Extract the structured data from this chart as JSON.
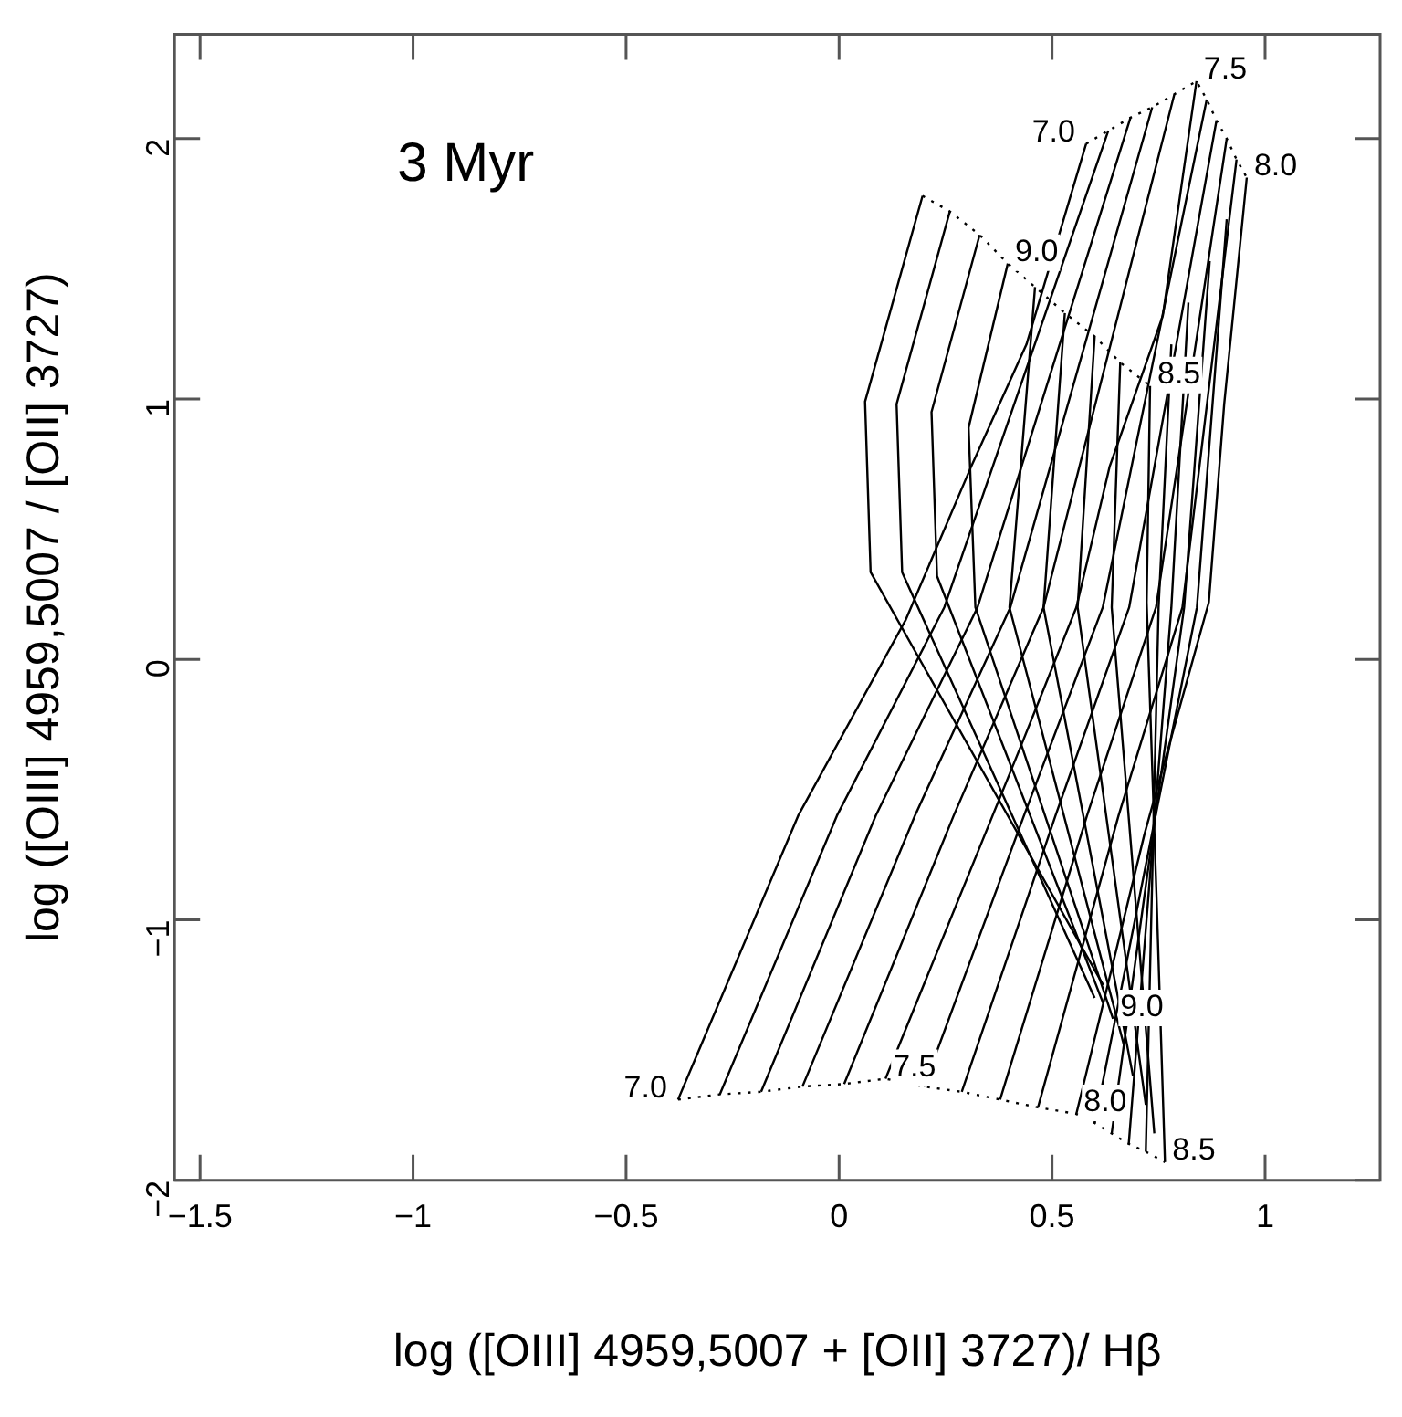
{
  "chart_data": {
    "type": "line",
    "xlabel": "log ([OIII] 4959,5007 + [OII] 3727)/ Hβ",
    "ylabel": "log ([OIII] 4959,5007 / [OII] 3727)",
    "xlim": [
      -1.56,
      1.27
    ],
    "ylim": [
      -2,
      2.4
    ],
    "xticks": [
      -1.5,
      -1,
      -0.5,
      0,
      0.5,
      1
    ],
    "yticks": [
      -2,
      -1,
      0,
      1,
      2
    ],
    "grid": false,
    "legend": false,
    "marker": "none",
    "line_style": "solid",
    "series": [
      {
        "color": "#000000",
        "x": [
          -0.378,
          -0.096,
          0.157,
          0.31,
          0.44,
          0.58
        ],
        "values": [
          -1.69,
          -0.6,
          0.154,
          0.74,
          1.21,
          1.98
        ]
      },
      {
        "color": "#000000",
        "x": [
          -0.28,
          -0.005,
          0.247,
          0.632
        ],
        "values": [
          -1.67,
          -0.6,
          0.2,
          2.03
        ]
      },
      {
        "color": "#000000",
        "x": [
          -0.183,
          0.086,
          0.325,
          0.684
        ],
        "values": [
          -1.66,
          -0.6,
          0.2,
          2.08
        ]
      },
      {
        "color": "#000000",
        "x": [
          -0.086,
          0.178,
          0.402,
          0.735
        ],
        "values": [
          -1.64,
          -0.6,
          0.2,
          2.12
        ]
      },
      {
        "color": "#000000",
        "x": [
          0.012,
          0.269,
          0.48,
          0.787
        ],
        "values": [
          -1.63,
          -0.6,
          0.2,
          2.17
        ]
      },
      {
        "color": "#000000",
        "x": [
          0.109,
          0.426,
          0.557,
          0.635,
          0.76,
          0.839
        ],
        "values": [
          -1.61,
          -0.336,
          0.2,
          0.74,
          1.32,
          2.22
        ]
      },
      {
        "color": "#000000",
        "x": [
          0.199,
          0.434,
          0.619,
          0.863
        ],
        "values": [
          -1.64,
          -0.6,
          0.2,
          2.15
        ]
      },
      {
        "color": "#000000",
        "x": [
          0.288,
          0.508,
          0.681,
          0.886
        ],
        "values": [
          -1.66,
          -0.6,
          0.2,
          2.07
        ]
      },
      {
        "color": "#000000",
        "x": [
          0.378,
          0.582,
          0.744,
          0.91
        ],
        "values": [
          -1.69,
          -0.6,
          0.2,
          2.0
        ]
      },
      {
        "color": "#000000",
        "x": [
          0.467,
          0.656,
          0.806,
          0.933
        ],
        "values": [
          -1.72,
          -0.6,
          0.2,
          1.92
        ]
      },
      {
        "color": "#000000",
        "x": [
          0.557,
          0.717,
          0.868,
          0.904,
          0.957
        ],
        "values": [
          -1.745,
          -0.67,
          0.22,
          0.98,
          1.85
        ]
      },
      {
        "color": "#000000",
        "x": [
          0.6,
          0.84,
          0.91
        ],
        "values": [
          -1.78,
          0.2,
          1.69
        ]
      },
      {
        "color": "#000000",
        "x": [
          0.64,
          0.81,
          0.87
        ],
        "values": [
          -1.82,
          0.2,
          1.53
        ]
      },
      {
        "color": "#000000",
        "x": [
          0.68,
          0.78,
          0.82
        ],
        "values": [
          -1.86,
          0.2,
          1.37
        ]
      },
      {
        "color": "#000000",
        "x": [
          0.72,
          0.75,
          0.78
        ],
        "values": [
          -1.89,
          0.2,
          1.21
        ]
      },
      {
        "color": "#000000",
        "x": [
          0.765,
          0.745,
          0.722,
          0.73
        ],
        "values": [
          -1.93,
          -0.9,
          0.22,
          1.05
        ]
      },
      {
        "color": "#000000",
        "x": [
          0.74,
          0.64,
          0.66
        ],
        "values": [
          -1.82,
          0.2,
          1.14
        ]
      },
      {
        "color": "#000000",
        "x": [
          0.72,
          0.56,
          0.6
        ],
        "values": [
          -1.71,
          0.2,
          1.24
        ]
      },
      {
        "color": "#000000",
        "x": [
          0.69,
          0.48,
          0.53
        ],
        "values": [
          -1.6,
          0.2,
          1.33
        ]
      },
      {
        "color": "#000000",
        "x": [
          0.67,
          0.4,
          0.46
        ],
        "values": [
          -1.49,
          0.2,
          1.43
        ]
      },
      {
        "color": "#000000",
        "x": [
          0.643,
          0.32,
          0.304,
          0.396
        ],
        "values": [
          -1.38,
          0.2,
          0.89,
          1.52
        ]
      },
      {
        "color": "#000000",
        "x": [
          0.62,
          0.23,
          0.217,
          0.33
        ],
        "values": [
          -1.32,
          0.32,
          0.95,
          1.63
        ]
      },
      {
        "color": "#000000",
        "x": [
          0.6,
          0.148,
          0.135,
          0.26
        ],
        "values": [
          -1.3,
          0.335,
          0.98,
          1.72
        ]
      },
      {
        "color": "#000000",
        "x": [
          0.62,
          0.074,
          0.061,
          0.196
        ],
        "values": [
          -1.25,
          0.335,
          0.99,
          1.78
        ]
      },
      {
        "color": "#000000",
        "line_style": "dotted",
        "x": [
          -0.378,
          -0.28,
          -0.183,
          -0.086,
          0.012,
          0.109,
          0.199,
          0.288,
          0.378,
          0.467,
          0.557,
          0.6,
          0.64,
          0.68,
          0.72,
          0.765
        ],
        "values": [
          -1.69,
          -1.67,
          -1.66,
          -1.64,
          -1.63,
          -1.61,
          -1.64,
          -1.66,
          -1.69,
          -1.72,
          -1.745,
          -1.78,
          -1.82,
          -1.86,
          -1.89,
          -1.93
        ]
      },
      {
        "color": "#000000",
        "line_style": "dotted",
        "x": [
          0.196,
          0.26,
          0.33,
          0.396,
          0.46,
          0.53,
          0.6,
          0.66,
          0.73
        ],
        "values": [
          1.78,
          1.72,
          1.63,
          1.52,
          1.43,
          1.33,
          1.24,
          1.14,
          1.05
        ]
      },
      {
        "color": "#000000",
        "line_style": "dotted",
        "x": [
          0.58,
          0.632,
          0.684,
          0.735,
          0.787,
          0.839,
          0.863,
          0.886,
          0.91,
          0.933,
          0.957
        ],
        "values": [
          1.98,
          2.03,
          2.08,
          2.12,
          2.17,
          2.22,
          2.15,
          2.07,
          2.0,
          1.92,
          1.85
        ]
      }
    ],
    "annotations": [
      "3 Myr",
      {
        "text": "7.0",
        "x": -0.378,
        "y": -1.69
      },
      {
        "text": "7.5",
        "x": 0.109,
        "y": -1.61
      },
      {
        "text": "8.0",
        "x": 0.557,
        "y": -1.745
      },
      {
        "text": "8.5",
        "x": 0.765,
        "y": -1.93
      },
      {
        "text": "9.0",
        "x": 0.643,
        "y": -1.38
      },
      {
        "text": "7.0",
        "x": 0.58,
        "y": 1.98
      },
      {
        "text": "7.5",
        "x": 0.839,
        "y": 2.22
      },
      {
        "text": "8.0",
        "x": 0.957,
        "y": 1.85
      },
      {
        "text": "8.5",
        "x": 0.73,
        "y": 1.05
      },
      {
        "text": "9.0",
        "x": 0.396,
        "y": 1.52
      }
    ]
  }
}
